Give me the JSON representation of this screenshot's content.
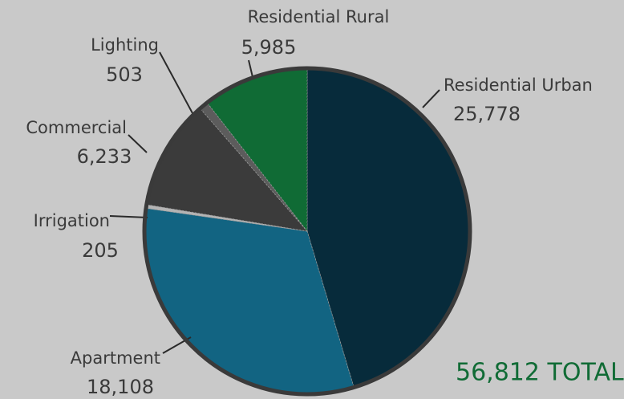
{
  "chart_data": {
    "type": "pie",
    "categories": [
      "Residential Urban",
      "Apartment",
      "Irrigation",
      "Commercial",
      "Lighting",
      "Residential Rural"
    ],
    "values": [
      25778,
      18108,
      205,
      6233,
      503,
      5985
    ],
    "value_labels": [
      "25,778",
      "18,108",
      "205",
      "6,233",
      "503",
      "5,985"
    ],
    "colors": [
      "#072b3b",
      "#126482",
      "#b4b4b4",
      "#3b3b3b",
      "#5c5c5c",
      "#106b35"
    ],
    "total_label": "56,812 TOTAL"
  }
}
